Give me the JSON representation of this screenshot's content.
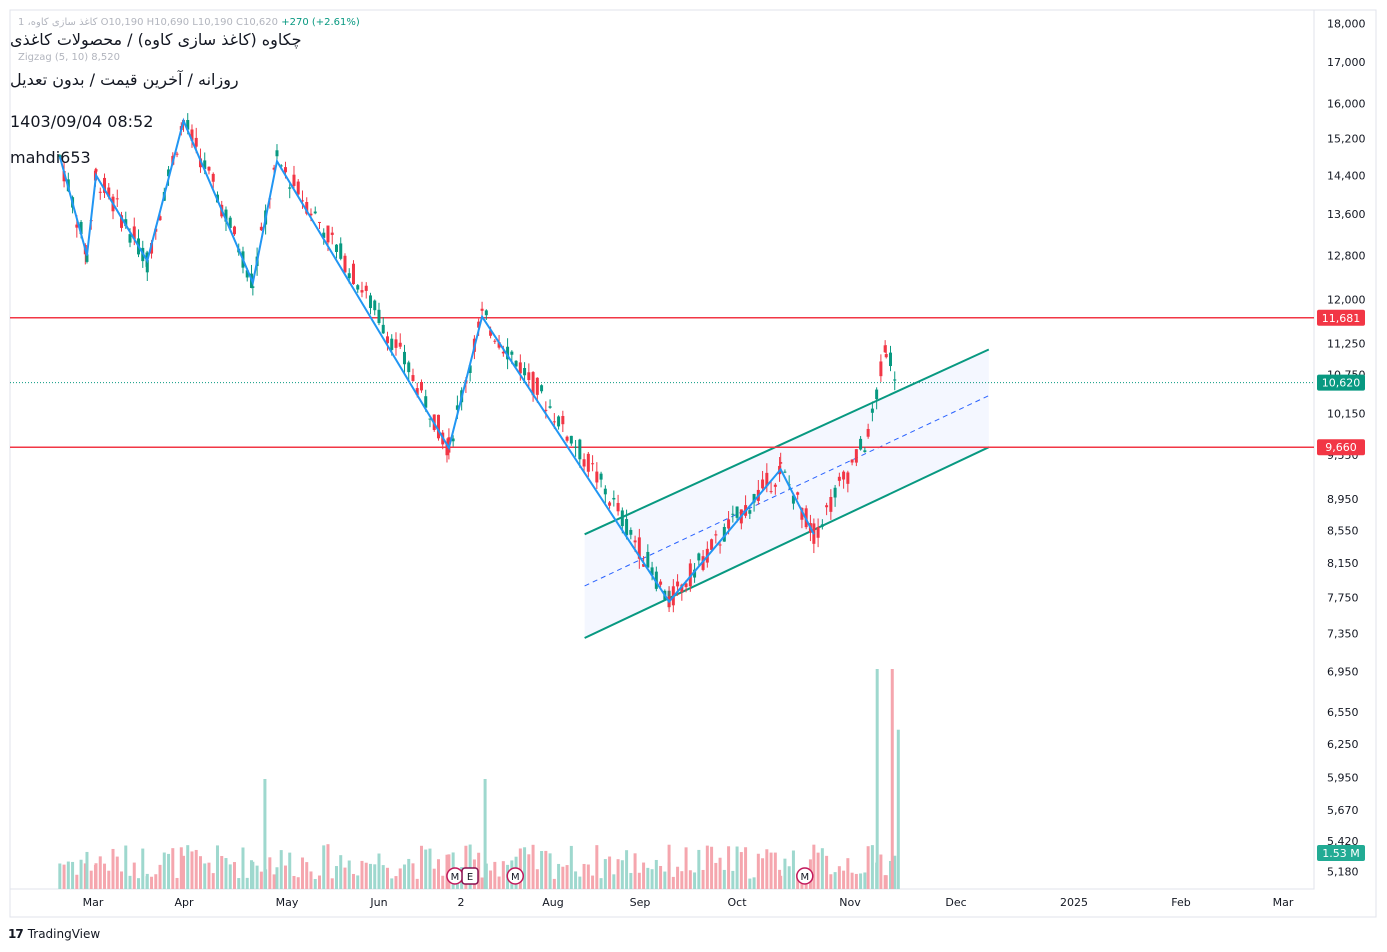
{
  "header": {
    "symbol_line": "چکاوه (کاغذ سازی کاوه) / محصولات کاغذی",
    "interval_line": "روزانه / آخرین قیمت / بدون تعدیل",
    "timestamp": "1403/09/04 08:52",
    "author": "mahdi653"
  },
  "legend": {
    "name": "کاغذ سازی کاوه، 1",
    "ohlc": "O10,190  H10,690  L10,190  C10,620",
    "change": "+270 (+2.61%)",
    "indicator": "Zigzag (5, 10)  8,520"
  },
  "branding": {
    "label": "TradingView"
  },
  "colors": {
    "up": "#089981",
    "down": "#f23645",
    "zigzag": "#2196f3",
    "channel": "#089981",
    "level": "#f23645"
  },
  "chart_data": {
    "type": "candlestick",
    "y_scale": "log",
    "ylim": [
      5050,
      18300
    ],
    "x_axis_labels": [
      "Mar",
      "Apr",
      "May",
      "Jun",
      "2",
      "Aug",
      "Sep",
      "Oct",
      "Nov",
      "Dec",
      "2025",
      "Feb",
      "Mar"
    ],
    "y_axis_labels": [
      "18,000",
      "17,000",
      "16,000",
      "15,200",
      "14,400",
      "13,600",
      "12,800",
      "12,000",
      "11,250",
      "10,750",
      "10,150",
      "9,550",
      "8,950",
      "8,550",
      "8,150",
      "7,750",
      "7,350",
      "6,950",
      "6,550",
      "6,250",
      "5,950",
      "5,670",
      "5,420",
      "5,180"
    ],
    "price_labels": [
      {
        "value": 11681,
        "text": "11,681",
        "color": "#f23645"
      },
      {
        "value": 10620,
        "text": "10,620",
        "color": "#089981"
      },
      {
        "value": 9660,
        "text": "9,660",
        "color": "#f23645"
      }
    ],
    "volume_label": "1.53 M",
    "horizontal_levels": [
      11681,
      9660
    ],
    "last_price": 10620,
    "zigzag": [
      {
        "date": "Feb 18",
        "price": 14800
      },
      {
        "date": "Feb 27",
        "price": 12800
      },
      {
        "date": "Mar 01",
        "price": 14400
      },
      {
        "date": "Mar 18",
        "price": 12700
      },
      {
        "date": "Mar 30",
        "price": 15600
      },
      {
        "date": "Apr 22",
        "price": 12300
      },
      {
        "date": "Apr 30",
        "price": 14700
      },
      {
        "date": "Jun 26",
        "price": 9650
      },
      {
        "date": "Jul 07",
        "price": 11700
      },
      {
        "date": "Sep 07",
        "price": 7700
      },
      {
        "date": "Oct 14",
        "price": 9350
      },
      {
        "date": "Oct 25",
        "price": 8500
      }
    ],
    "channel": {
      "upper": [
        {
          "date": "Aug 10",
          "price": 8500
        },
        {
          "date": "Dec 22",
          "price": 11150
        }
      ],
      "lower": [
        {
          "date": "Aug 10",
          "price": 7300
        },
        {
          "date": "Dec 22",
          "price": 9660
        }
      ],
      "mid": [
        {
          "date": "Aug 10",
          "price": 7880
        },
        {
          "date": "Dec 22",
          "price": 10420
        }
      ]
    },
    "volume_spikes": [
      {
        "date": "Nov 15",
        "volume": 5.0
      },
      {
        "date": "Nov 20",
        "volume": 5.0
      },
      {
        "date": "Nov 22",
        "volume": 3.62
      },
      {
        "date": "Jul 08",
        "volume": 2.5
      },
      {
        "date": "Apr 26",
        "volume": 2.5
      }
    ],
    "markers": [
      {
        "date": "Jun 28",
        "text": "M"
      },
      {
        "date": "Jul 03",
        "text": "E"
      },
      {
        "date": "Jul 18",
        "text": "M"
      },
      {
        "date": "Oct 22",
        "text": "M"
      }
    ]
  }
}
